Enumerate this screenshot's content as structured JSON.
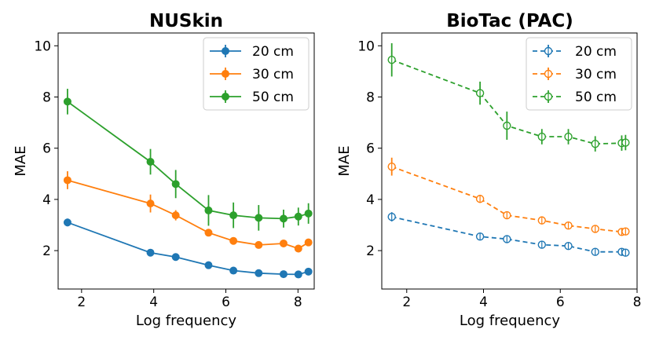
{
  "chart_data": [
    {
      "type": "line",
      "title": "NUSkin",
      "xlabel": "Log frequency",
      "ylabel": "MAE",
      "xlim": [
        1.35,
        8.45
      ],
      "ylim": [
        0.5,
        10.5
      ],
      "xticks": [
        2,
        4,
        6,
        8
      ],
      "yticks": [
        2,
        4,
        6,
        8,
        10
      ],
      "marker": "filled",
      "line_style": "solid",
      "legend_position": "top-right",
      "x": [
        1.61,
        3.91,
        4.61,
        5.52,
        6.21,
        6.91,
        7.6,
        8.01,
        8.29
      ],
      "series": [
        {
          "name": "20 cm",
          "color": "#1f77b4",
          "values": [
            3.1,
            1.92,
            1.75,
            1.43,
            1.22,
            1.12,
            1.08,
            1.07,
            1.18
          ],
          "errors": [
            0.15,
            0.08,
            0.08,
            0.08,
            0.08,
            0.06,
            0.06,
            0.06,
            0.08
          ]
        },
        {
          "name": "30 cm",
          "color": "#ff7f0e",
          "values": [
            4.75,
            3.84,
            3.38,
            2.7,
            2.38,
            2.22,
            2.28,
            2.08,
            2.32
          ],
          "errors": [
            0.35,
            0.35,
            0.2,
            0.12,
            0.1,
            0.1,
            0.1,
            0.12,
            0.1
          ]
        },
        {
          "name": "50 cm",
          "color": "#2ca02c",
          "values": [
            7.82,
            5.47,
            4.6,
            3.57,
            3.38,
            3.28,
            3.25,
            3.33,
            3.45
          ],
          "errors": [
            0.5,
            0.5,
            0.55,
            0.6,
            0.5,
            0.5,
            0.35,
            0.35,
            0.4
          ]
        }
      ]
    },
    {
      "type": "line",
      "title": "BioTac (PAC)",
      "xlabel": "Log frequency",
      "ylabel": "MAE",
      "xlim": [
        1.35,
        8.0
      ],
      "ylim": [
        0.5,
        10.5
      ],
      "xticks": [
        2,
        4,
        6,
        8
      ],
      "yticks": [
        2,
        4,
        6,
        8,
        10
      ],
      "marker": "hollow",
      "line_style": "dashed",
      "legend_position": "top-right",
      "x": [
        1.61,
        3.91,
        4.61,
        5.52,
        6.21,
        6.91,
        7.6,
        7.7
      ],
      "series": [
        {
          "name": "20 cm",
          "color": "#1f77b4",
          "values": [
            3.32,
            2.55,
            2.45,
            2.23,
            2.18,
            1.95,
            1.95,
            1.92
          ],
          "errors": [
            0.18,
            0.1,
            0.12,
            0.08,
            0.08,
            0.08,
            0.08,
            0.08
          ]
        },
        {
          "name": "30 cm",
          "color": "#ff7f0e",
          "values": [
            5.28,
            4.02,
            3.38,
            3.18,
            2.98,
            2.85,
            2.73,
            2.75
          ],
          "errors": [
            0.35,
            0.15,
            0.15,
            0.1,
            0.1,
            0.1,
            0.08,
            0.08
          ]
        },
        {
          "name": "50 cm",
          "color": "#2ca02c",
          "values": [
            9.45,
            8.15,
            6.88,
            6.45,
            6.45,
            6.17,
            6.2,
            6.22
          ],
          "errors": [
            0.65,
            0.45,
            0.55,
            0.3,
            0.3,
            0.3,
            0.3,
            0.3
          ]
        }
      ]
    }
  ]
}
